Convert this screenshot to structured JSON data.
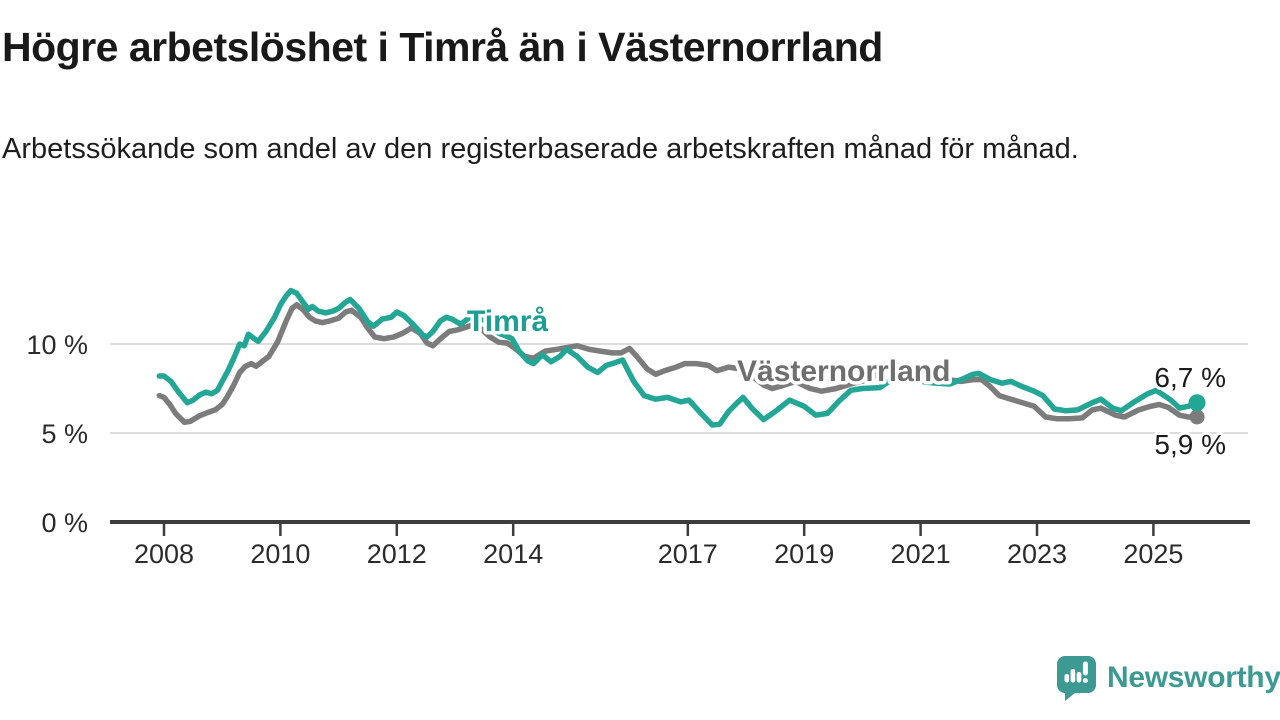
{
  "page": {
    "title": "Högre arbetslöshet i Timrå än i Västernorrland",
    "subtitle": "Arbetssökande som andel av den registerbaserade arbetskraften månad för månad."
  },
  "branding": {
    "name": "Newsworthy",
    "color": "#3c9a93"
  },
  "chart_data": {
    "type": "line",
    "unit": "%",
    "grid": "horizontal",
    "x_axis": {
      "tick_years": [
        2008,
        2010,
        2012,
        2014,
        2017,
        2019,
        2021,
        2023,
        2025
      ],
      "tick_labels": [
        "2008",
        "2010",
        "2012",
        "2014",
        "2017",
        "2019",
        "2021",
        "2023",
        "2025"
      ],
      "range": [
        2007.07,
        2026.6
      ]
    },
    "y_axis": {
      "ticks": [
        0,
        5,
        10
      ],
      "tick_labels": [
        "0 %",
        "5 %",
        "10 %"
      ],
      "range": [
        0,
        14.5
      ]
    },
    "series": [
      {
        "name": "Västernorrland",
        "color": "#7c7c7c",
        "label_color": "#6f6f6f",
        "end_value": 5.9,
        "end_value_label": "5,9 %",
        "points": [
          [
            2007.92,
            7.1
          ],
          [
            2008.0,
            7.0
          ],
          [
            2008.1,
            6.6
          ],
          [
            2008.2,
            6.1
          ],
          [
            2008.35,
            5.6
          ],
          [
            2008.45,
            5.65
          ],
          [
            2008.6,
            5.95
          ],
          [
            2008.75,
            6.15
          ],
          [
            2008.88,
            6.3
          ],
          [
            2009.0,
            6.6
          ],
          [
            2009.1,
            7.1
          ],
          [
            2009.2,
            7.7
          ],
          [
            2009.3,
            8.4
          ],
          [
            2009.4,
            8.75
          ],
          [
            2009.5,
            8.9
          ],
          [
            2009.58,
            8.75
          ],
          [
            2009.68,
            9.0
          ],
          [
            2009.8,
            9.3
          ],
          [
            2009.95,
            10.1
          ],
          [
            2010.1,
            11.3
          ],
          [
            2010.2,
            12.0
          ],
          [
            2010.28,
            12.2
          ],
          [
            2010.4,
            11.9
          ],
          [
            2010.5,
            11.5
          ],
          [
            2010.6,
            11.3
          ],
          [
            2010.72,
            11.2
          ],
          [
            2010.85,
            11.3
          ],
          [
            2011.0,
            11.45
          ],
          [
            2011.12,
            11.8
          ],
          [
            2011.22,
            11.9
          ],
          [
            2011.38,
            11.5
          ],
          [
            2011.5,
            10.9
          ],
          [
            2011.62,
            10.4
          ],
          [
            2011.78,
            10.3
          ],
          [
            2011.95,
            10.4
          ],
          [
            2012.1,
            10.6
          ],
          [
            2012.25,
            10.9
          ],
          [
            2012.4,
            10.6
          ],
          [
            2012.52,
            10.05
          ],
          [
            2012.62,
            9.9
          ],
          [
            2012.75,
            10.3
          ],
          [
            2012.9,
            10.7
          ],
          [
            2013.05,
            10.8
          ],
          [
            2013.2,
            10.95
          ],
          [
            2013.32,
            11.1
          ],
          [
            2013.45,
            10.85
          ],
          [
            2013.6,
            10.4
          ],
          [
            2013.75,
            10.1
          ],
          [
            2013.9,
            10.05
          ],
          [
            2014.05,
            9.7
          ],
          [
            2014.2,
            9.3
          ],
          [
            2014.35,
            9.2
          ],
          [
            2014.55,
            9.6
          ],
          [
            2014.75,
            9.7
          ],
          [
            2014.92,
            9.8
          ],
          [
            2015.1,
            9.9
          ],
          [
            2015.3,
            9.7
          ],
          [
            2015.5,
            9.6
          ],
          [
            2015.7,
            9.5
          ],
          [
            2015.85,
            9.5
          ],
          [
            2016.0,
            9.75
          ],
          [
            2016.15,
            9.2
          ],
          [
            2016.3,
            8.6
          ],
          [
            2016.45,
            8.3
          ],
          [
            2016.6,
            8.5
          ],
          [
            2016.8,
            8.7
          ],
          [
            2016.95,
            8.9
          ],
          [
            2017.15,
            8.9
          ],
          [
            2017.35,
            8.8
          ],
          [
            2017.5,
            8.5
          ],
          [
            2017.7,
            8.7
          ],
          [
            2017.9,
            8.6
          ],
          [
            2018.1,
            8.2
          ],
          [
            2018.3,
            7.7
          ],
          [
            2018.45,
            7.5
          ],
          [
            2018.62,
            7.65
          ],
          [
            2018.85,
            7.9
          ],
          [
            2019.1,
            7.5
          ],
          [
            2019.3,
            7.35
          ],
          [
            2019.55,
            7.5
          ],
          [
            2019.8,
            7.75
          ],
          [
            2020.1,
            8.0
          ],
          [
            2020.35,
            8.5
          ],
          [
            2020.55,
            8.8
          ],
          [
            2020.75,
            8.7
          ],
          [
            2020.95,
            8.5
          ],
          [
            2021.2,
            8.2
          ],
          [
            2021.45,
            8.0
          ],
          [
            2021.7,
            7.9
          ],
          [
            2021.9,
            8.0
          ],
          [
            2022.05,
            8.0
          ],
          [
            2022.2,
            7.6
          ],
          [
            2022.35,
            7.1
          ],
          [
            2022.55,
            6.9
          ],
          [
            2022.75,
            6.7
          ],
          [
            2022.95,
            6.5
          ],
          [
            2023.15,
            5.9
          ],
          [
            2023.35,
            5.8
          ],
          [
            2023.55,
            5.8
          ],
          [
            2023.78,
            5.85
          ],
          [
            2023.95,
            6.3
          ],
          [
            2024.1,
            6.4
          ],
          [
            2024.35,
            6.0
          ],
          [
            2024.5,
            5.9
          ],
          [
            2024.75,
            6.3
          ],
          [
            2024.95,
            6.5
          ],
          [
            2025.1,
            6.6
          ],
          [
            2025.25,
            6.45
          ],
          [
            2025.45,
            6.0
          ],
          [
            2025.6,
            5.9
          ],
          [
            2025.75,
            5.9
          ]
        ]
      },
      {
        "name": "Timrå",
        "color": "#23a696",
        "label_color": "#1d9e92",
        "end_value": 6.7,
        "end_value_label": "6,7 %",
        "points": [
          [
            2007.92,
            8.2
          ],
          [
            2008.0,
            8.2
          ],
          [
            2008.12,
            7.9
          ],
          [
            2008.25,
            7.3
          ],
          [
            2008.4,
            6.7
          ],
          [
            2008.5,
            6.85
          ],
          [
            2008.62,
            7.15
          ],
          [
            2008.72,
            7.3
          ],
          [
            2008.82,
            7.2
          ],
          [
            2008.92,
            7.4
          ],
          [
            2009.0,
            7.9
          ],
          [
            2009.1,
            8.5
          ],
          [
            2009.2,
            9.2
          ],
          [
            2009.3,
            10.0
          ],
          [
            2009.38,
            9.9
          ],
          [
            2009.45,
            10.55
          ],
          [
            2009.55,
            10.3
          ],
          [
            2009.62,
            10.15
          ],
          [
            2009.75,
            10.7
          ],
          [
            2009.9,
            11.5
          ],
          [
            2010.0,
            12.2
          ],
          [
            2010.1,
            12.7
          ],
          [
            2010.18,
            13.0
          ],
          [
            2010.28,
            12.85
          ],
          [
            2010.4,
            12.3
          ],
          [
            2010.48,
            11.95
          ],
          [
            2010.55,
            12.1
          ],
          [
            2010.65,
            11.85
          ],
          [
            2010.78,
            11.75
          ],
          [
            2010.9,
            11.85
          ],
          [
            2011.0,
            12.0
          ],
          [
            2011.12,
            12.35
          ],
          [
            2011.2,
            12.5
          ],
          [
            2011.35,
            12.0
          ],
          [
            2011.5,
            11.25
          ],
          [
            2011.6,
            11.0
          ],
          [
            2011.75,
            11.4
          ],
          [
            2011.9,
            11.5
          ],
          [
            2012.0,
            11.8
          ],
          [
            2012.12,
            11.6
          ],
          [
            2012.28,
            11.1
          ],
          [
            2012.45,
            10.5
          ],
          [
            2012.52,
            10.4
          ],
          [
            2012.62,
            10.7
          ],
          [
            2012.75,
            11.3
          ],
          [
            2012.85,
            11.5
          ],
          [
            2012.95,
            11.4
          ],
          [
            2013.1,
            11.1
          ],
          [
            2013.25,
            11.5
          ],
          [
            2013.35,
            11.65
          ],
          [
            2013.45,
            11.5
          ],
          [
            2013.6,
            11.0
          ],
          [
            2013.75,
            10.6
          ],
          [
            2013.88,
            10.45
          ],
          [
            2013.98,
            10.3
          ],
          [
            2014.1,
            9.6
          ],
          [
            2014.25,
            9.05
          ],
          [
            2014.35,
            8.9
          ],
          [
            2014.5,
            9.4
          ],
          [
            2014.65,
            9.0
          ],
          [
            2014.8,
            9.3
          ],
          [
            2014.92,
            9.7
          ],
          [
            2015.1,
            9.3
          ],
          [
            2015.28,
            8.7
          ],
          [
            2015.45,
            8.4
          ],
          [
            2015.6,
            8.8
          ],
          [
            2015.75,
            8.95
          ],
          [
            2015.88,
            9.1
          ],
          [
            2016.07,
            7.9
          ],
          [
            2016.25,
            7.1
          ],
          [
            2016.45,
            6.9
          ],
          [
            2016.65,
            7.0
          ],
          [
            2016.88,
            6.75
          ],
          [
            2017.02,
            6.85
          ],
          [
            2017.2,
            6.2
          ],
          [
            2017.42,
            5.45
          ],
          [
            2017.55,
            5.5
          ],
          [
            2017.7,
            6.2
          ],
          [
            2017.85,
            6.7
          ],
          [
            2017.95,
            7.0
          ],
          [
            2018.1,
            6.4
          ],
          [
            2018.3,
            5.75
          ],
          [
            2018.5,
            6.2
          ],
          [
            2018.75,
            6.85
          ],
          [
            2019.0,
            6.5
          ],
          [
            2019.2,
            6.0
          ],
          [
            2019.4,
            6.1
          ],
          [
            2019.6,
            6.8
          ],
          [
            2019.8,
            7.4
          ],
          [
            2020.0,
            7.5
          ],
          [
            2020.3,
            7.55
          ],
          [
            2020.5,
            8.0
          ],
          [
            2020.7,
            8.1
          ],
          [
            2020.9,
            8.0
          ],
          [
            2021.1,
            7.85
          ],
          [
            2021.3,
            7.8
          ],
          [
            2021.5,
            7.75
          ],
          [
            2021.7,
            8.0
          ],
          [
            2021.9,
            8.3
          ],
          [
            2022.0,
            8.35
          ],
          [
            2022.2,
            8.0
          ],
          [
            2022.4,
            7.8
          ],
          [
            2022.55,
            7.9
          ],
          [
            2022.75,
            7.6
          ],
          [
            2022.95,
            7.35
          ],
          [
            2023.1,
            7.1
          ],
          [
            2023.3,
            6.35
          ],
          [
            2023.5,
            6.25
          ],
          [
            2023.7,
            6.3
          ],
          [
            2023.95,
            6.7
          ],
          [
            2024.1,
            6.9
          ],
          [
            2024.3,
            6.4
          ],
          [
            2024.45,
            6.25
          ],
          [
            2024.65,
            6.7
          ],
          [
            2024.9,
            7.2
          ],
          [
            2025.05,
            7.4
          ],
          [
            2025.3,
            6.85
          ],
          [
            2025.45,
            6.4
          ],
          [
            2025.6,
            6.5
          ],
          [
            2025.75,
            6.7
          ]
        ]
      }
    ]
  }
}
